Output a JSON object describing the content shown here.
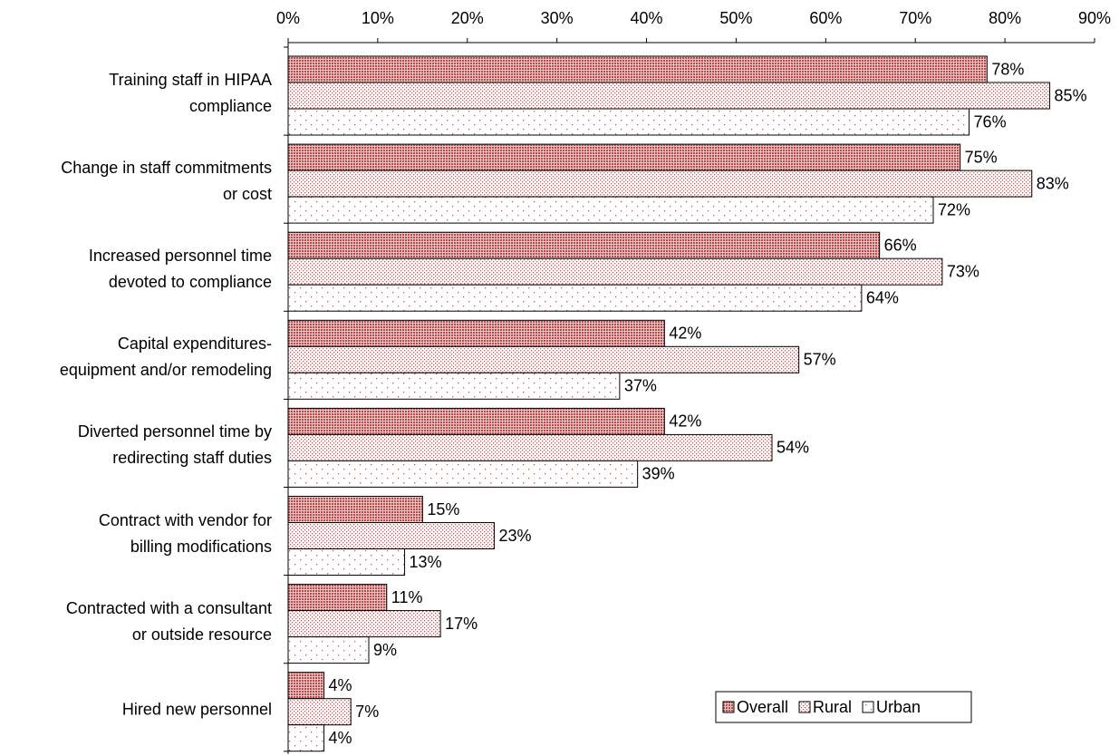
{
  "chart_data": {
    "type": "hbar",
    "categories": [
      "Training staff in HIPAA\ncompliance",
      "Change in staff commitments\nor cost",
      "Increased personnel time\ndevoted to compliance",
      "Capital expenditures-\nequipment and/or remodeling",
      "Diverted personnel time by\nredirecting staff duties",
      "Contract with vendor for\nbilling modifications",
      "Contracted with a consultant\nor outside resource",
      "Hired new personnel"
    ],
    "series": [
      {
        "name": "Overall",
        "color": "#b94a4a",
        "pattern": "crosshatch",
        "values": [
          78,
          75,
          66,
          42,
          42,
          15,
          11,
          4
        ],
        "value_labels": [
          "78%",
          "75%",
          "66%",
          "42%",
          "42%",
          "15%",
          "11%",
          "4%"
        ]
      },
      {
        "name": "Rural",
        "color": "#c45656",
        "pattern": "dense-dots",
        "values": [
          85,
          83,
          73,
          57,
          54,
          23,
          17,
          7
        ],
        "value_labels": [
          "85%",
          "83%",
          "73%",
          "57%",
          "54%",
          "23%",
          "17%",
          "7%"
        ]
      },
      {
        "name": "Urban",
        "color": "#c45656",
        "pattern": "sparse-dots",
        "values": [
          76,
          72,
          64,
          37,
          39,
          13,
          9,
          4
        ],
        "value_labels": [
          "76%",
          "72%",
          "64%",
          "37%",
          "39%",
          "13%",
          "9%",
          "4%"
        ]
      }
    ],
    "xlim": [
      0,
      90
    ],
    "xticks": [
      {
        "value": 0,
        "label": "0%"
      },
      {
        "value": 10,
        "label": "10%"
      },
      {
        "value": 20,
        "label": "20%"
      },
      {
        "value": 30,
        "label": "30%"
      },
      {
        "value": 40,
        "label": "40%"
      },
      {
        "value": 50,
        "label": "50%"
      },
      {
        "value": 60,
        "label": "60%"
      },
      {
        "value": 70,
        "label": "70%"
      },
      {
        "value": 80,
        "label": "80%"
      },
      {
        "value": 90,
        "label": "90%"
      }
    ],
    "legend": "lower right"
  }
}
